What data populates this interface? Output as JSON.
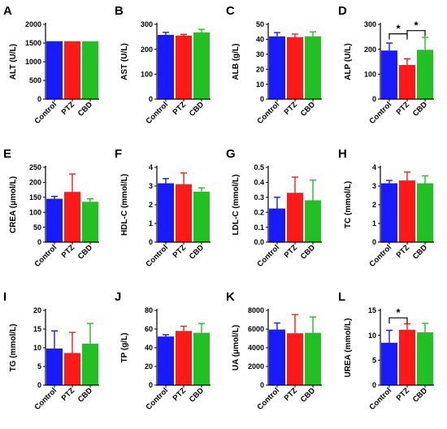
{
  "figure": {
    "colors": {
      "Control": "#1a1aff",
      "PTZ": "#ff1a1a",
      "CBD": "#22c022"
    },
    "significance_marker": "*"
  },
  "chart_data": [
    {
      "panel": "A",
      "type": "bar",
      "ylabel": "ALT (U/L)",
      "categories": [
        "Control",
        "PTZ",
        "CBD"
      ],
      "values": [
        1550,
        1550,
        1550
      ],
      "errors": [
        0,
        0,
        0
      ],
      "ylim": [
        0,
        2000
      ],
      "yticks": [
        "0",
        "500",
        "1000",
        "1500",
        "2000"
      ],
      "significance": []
    },
    {
      "panel": "B",
      "type": "bar",
      "ylabel": "AST (U/L)",
      "categories": [
        "Control",
        "PTZ",
        "CBD"
      ],
      "values": [
        258,
        255,
        268
      ],
      "errors": [
        10,
        5,
        12
      ],
      "ylim": [
        0,
        300
      ],
      "yticks": [
        "0",
        "100",
        "200",
        "300"
      ],
      "significance": []
    },
    {
      "panel": "C",
      "type": "bar",
      "ylabel": "ALB (g/L)",
      "categories": [
        "Control",
        "PTZ",
        "CBD"
      ],
      "values": [
        42,
        41.5,
        42
      ],
      "errors": [
        2.5,
        2,
        3
      ],
      "ylim": [
        0,
        50
      ],
      "yticks": [
        "0",
        "10",
        "20",
        "30",
        "40",
        "50"
      ],
      "significance": []
    },
    {
      "panel": "D",
      "type": "bar",
      "ylabel": "ALP (U/L)",
      "categories": [
        "Control",
        "PTZ",
        "CBD"
      ],
      "values": [
        195,
        137,
        198
      ],
      "errors": [
        30,
        25,
        50
      ],
      "ylim": [
        0,
        300
      ],
      "yticks": [
        "0",
        "100",
        "200",
        "300"
      ],
      "significance": [
        {
          "from": 0,
          "to": 1,
          "label": "*",
          "level": 262
        },
        {
          "from": 1,
          "to": 2,
          "label": "*",
          "level": 275
        }
      ]
    },
    {
      "panel": "E",
      "type": "bar",
      "ylabel": "CREA (μmol/L)",
      "categories": [
        "Control",
        "PTZ",
        "CBD"
      ],
      "values": [
        145,
        168,
        135
      ],
      "errors": [
        8,
        60,
        10
      ],
      "ylim": [
        0,
        250
      ],
      "yticks": [
        "0",
        "50",
        "100",
        "150",
        "200",
        "250"
      ],
      "significance": []
    },
    {
      "panel": "F",
      "type": "bar",
      "ylabel": "HDL-C (mmol/L)",
      "categories": [
        "Control",
        "PTZ",
        "CBD"
      ],
      "values": [
        3.15,
        3.1,
        2.7
      ],
      "errors": [
        0.25,
        0.6,
        0.2
      ],
      "ylim": [
        0,
        4
      ],
      "yticks": [
        "0",
        "1",
        "2",
        "3",
        "4"
      ],
      "significance": []
    },
    {
      "panel": "G",
      "type": "bar",
      "ylabel": "LDL-C (mmol/L)",
      "categories": [
        "Control",
        "PTZ",
        "CBD"
      ],
      "values": [
        0.225,
        0.33,
        0.28
      ],
      "errors": [
        0.075,
        0.105,
        0.135
      ],
      "ylim": [
        0,
        0.5
      ],
      "yticks": [
        "0.0",
        "0.1",
        "0.2",
        "0.3",
        "0.4",
        "0.5"
      ],
      "significance": []
    },
    {
      "panel": "H",
      "type": "bar",
      "ylabel": "TC (mmol/L)",
      "categories": [
        "Control",
        "PTZ",
        "CBD"
      ],
      "values": [
        3.15,
        3.3,
        3.15
      ],
      "errors": [
        0.15,
        0.45,
        0.4
      ],
      "ylim": [
        0,
        4
      ],
      "yticks": [
        "0",
        "1",
        "2",
        "3",
        "4"
      ],
      "significance": []
    },
    {
      "panel": "I",
      "type": "bar",
      "ylabel": "TG (mmol/L)",
      "categories": [
        "Control",
        "PTZ",
        "CBD"
      ],
      "values": [
        9.8,
        8.6,
        11.1
      ],
      "errors": [
        4.7,
        5.5,
        5.4
      ],
      "ylim": [
        0,
        20
      ],
      "yticks": [
        "0",
        "5",
        "10",
        "15",
        "20"
      ],
      "significance": []
    },
    {
      "panel": "J",
      "type": "bar",
      "ylabel": "TP (g/L)",
      "categories": [
        "Control",
        "PTZ",
        "CBD"
      ],
      "values": [
        52,
        58,
        56
      ],
      "errors": [
        2,
        5,
        10
      ],
      "ylim": [
        0,
        80
      ],
      "yticks": [
        "0",
        "20",
        "40",
        "60",
        "80"
      ],
      "significance": []
    },
    {
      "panel": "K",
      "type": "bar",
      "ylabel": "UA (μmol/L)",
      "categories": [
        "Control",
        "PTZ",
        "CBD"
      ],
      "values": [
        5950,
        5550,
        5600
      ],
      "errors": [
        700,
        2000,
        1700
      ],
      "ylim": [
        0,
        8000
      ],
      "yticks": [
        "0",
        "2000",
        "4000",
        "6000",
        "8000"
      ],
      "significance": []
    },
    {
      "panel": "L",
      "type": "bar",
      "ylabel": "UREA (mmol/L)",
      "categories": [
        "Control",
        "PTZ",
        "CBD"
      ],
      "values": [
        8.5,
        11.1,
        10.6
      ],
      "errors": [
        2.5,
        1.2,
        1.8
      ],
      "ylim": [
        0,
        15
      ],
      "yticks": [
        "0",
        "5",
        "10",
        "15"
      ],
      "significance": [
        {
          "from": 0,
          "to": 1,
          "label": "*",
          "level": 13.5
        }
      ]
    }
  ]
}
